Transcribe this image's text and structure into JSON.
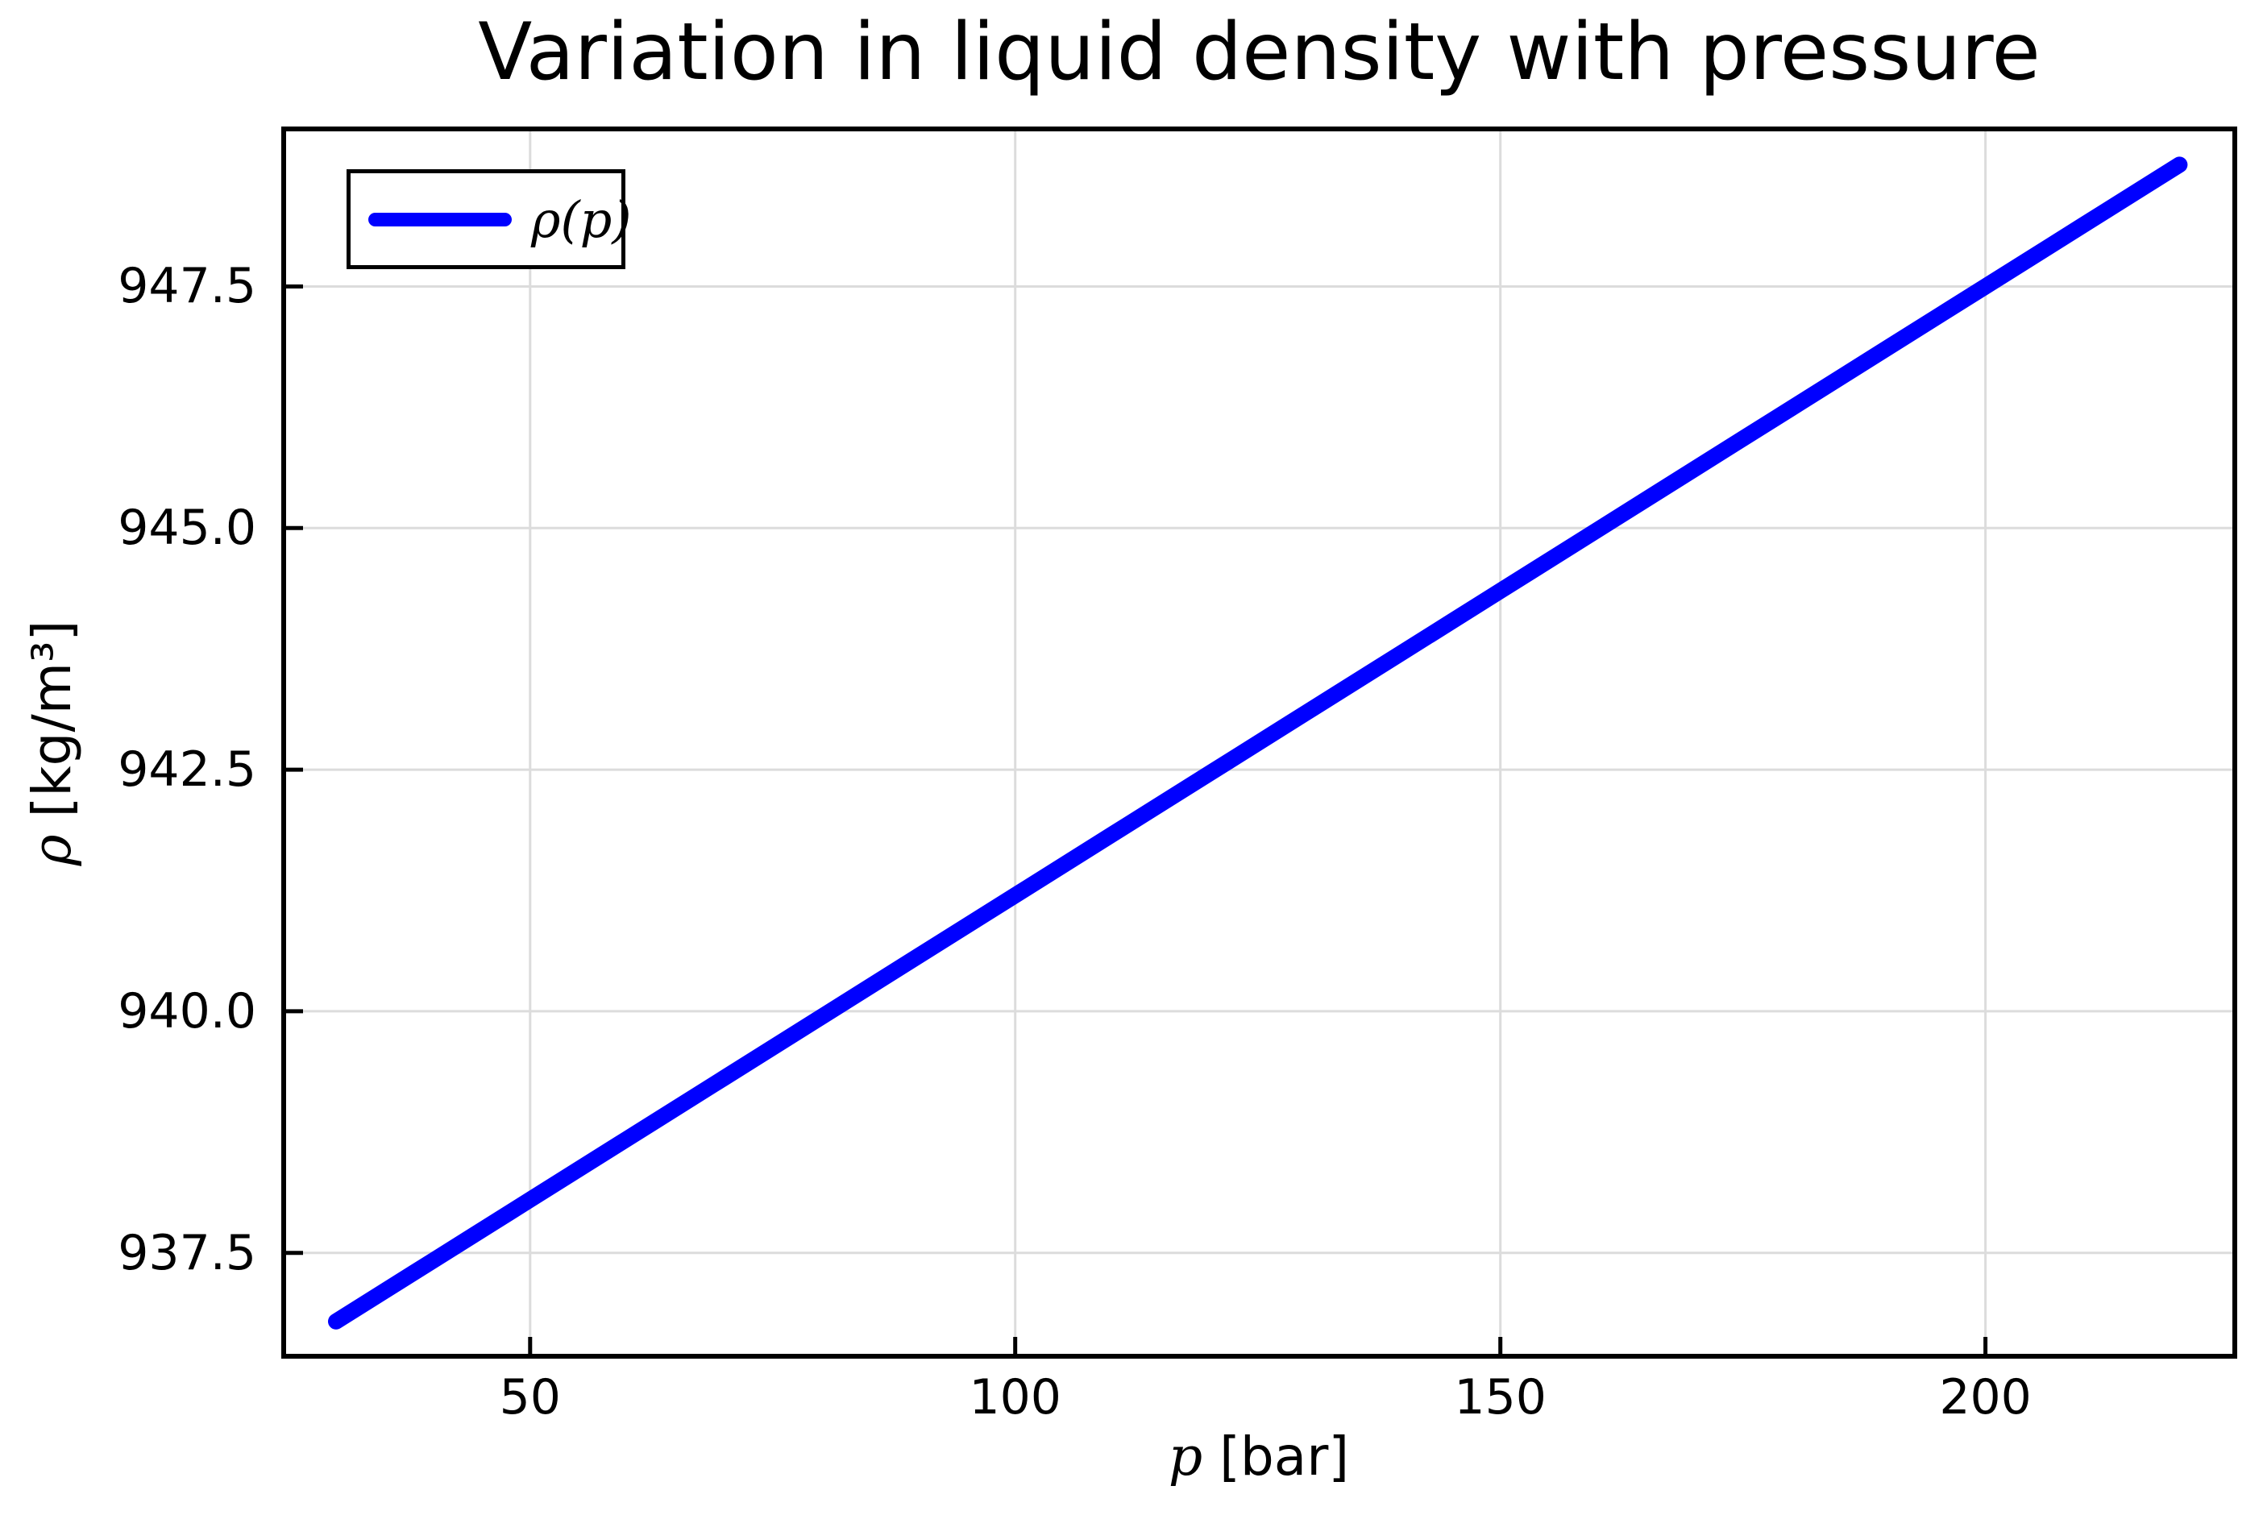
{
  "colors": {
    "line": "#0000ff",
    "grid": "#dcdcdc",
    "axis": "#000000",
    "text": "#000000",
    "background": "#ffffff",
    "legend_background": "#ffffff"
  },
  "chart_data": {
    "type": "line",
    "title": "Variation in liquid density with pressure",
    "xlabel": "p [bar]",
    "xlabel_symbol": "p",
    "xlabel_units": " [bar]",
    "ylabel": "ρ [kg/m³]",
    "ylabel_symbol": "ρ",
    "ylabel_units": " [kg/m³]",
    "grid": true,
    "legend": {
      "label": "ρ(p)",
      "position": "upper left"
    },
    "xlim": [
      24.6,
      225.7
    ],
    "ylim": [
      936.43,
      949.13
    ],
    "xticks": [
      {
        "value": 50,
        "label": "50"
      },
      {
        "value": 100,
        "label": "100"
      },
      {
        "value": 150,
        "label": "150"
      },
      {
        "value": 200,
        "label": "200"
      }
    ],
    "yticks": [
      {
        "value": 937.5,
        "label": "937.5"
      },
      {
        "value": 940.0,
        "label": "940.0"
      },
      {
        "value": 942.5,
        "label": "942.5"
      },
      {
        "value": 945.0,
        "label": "945.0"
      },
      {
        "value": 947.5,
        "label": "947.5"
      }
    ],
    "series": [
      {
        "name": "ρ(p)",
        "color": "#0000ff",
        "linewidth": 20,
        "x": [
          30,
          40,
          50,
          60,
          70,
          80,
          90,
          100,
          110,
          120,
          130,
          140,
          150,
          160,
          170,
          180,
          190,
          200,
          210,
          220
        ],
        "y": [
          936.79,
          937.42,
          938.05,
          938.68,
          939.31,
          939.94,
          940.57,
          941.2,
          941.83,
          942.46,
          943.09,
          943.72,
          944.35,
          944.98,
          945.61,
          946.24,
          946.87,
          947.5,
          948.13,
          948.76
        ]
      }
    ]
  }
}
